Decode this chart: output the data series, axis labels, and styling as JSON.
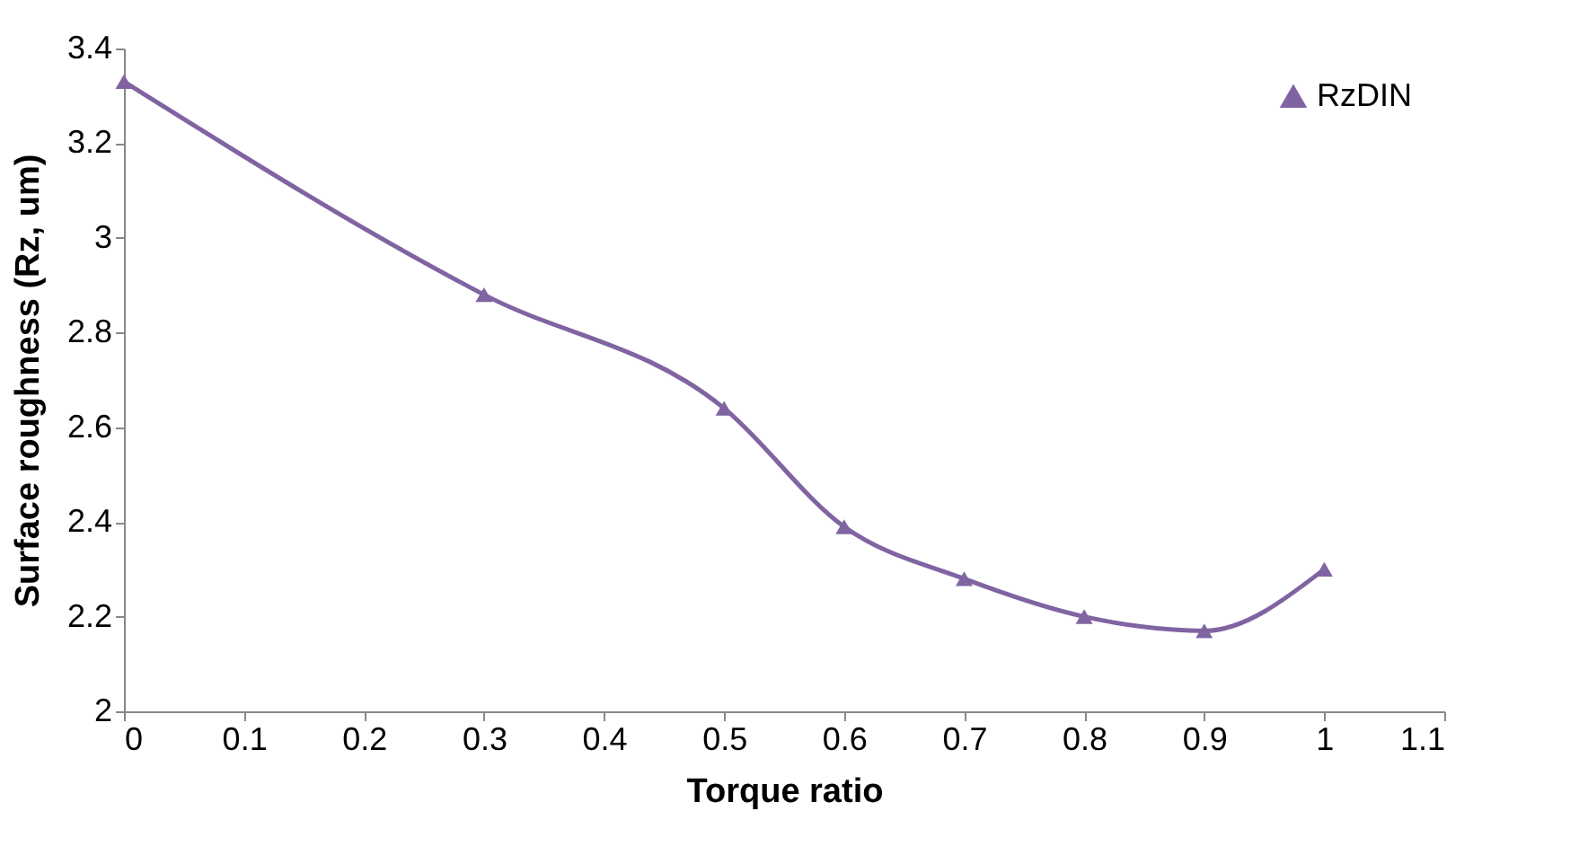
{
  "chart_data": {
    "type": "line",
    "xlabel": "Torque ratio",
    "ylabel": "Surface roughness  (Rz, um)",
    "x": [
      0,
      0.3,
      0.5,
      0.6,
      0.7,
      0.8,
      0.9,
      1
    ],
    "series": [
      {
        "name": "RzDIN",
        "color": "#8064a2",
        "values": [
          3.33,
          2.88,
          2.64,
          2.39,
          2.28,
          2.2,
          2.17,
          2.3
        ]
      }
    ],
    "xlim": [
      0,
      1.1
    ],
    "xticks": [
      0,
      0.1,
      0.2,
      0.3,
      0.4,
      0.5,
      0.6,
      0.7,
      0.8,
      0.9,
      1,
      1.1
    ],
    "ylim": [
      2,
      3.4
    ],
    "yticks": [
      2,
      2.2,
      2.4,
      2.6,
      2.8,
      3,
      3.2,
      3.4
    ],
    "grid": false,
    "legend": "top right",
    "marker": "triangle",
    "line_style": "solid"
  }
}
